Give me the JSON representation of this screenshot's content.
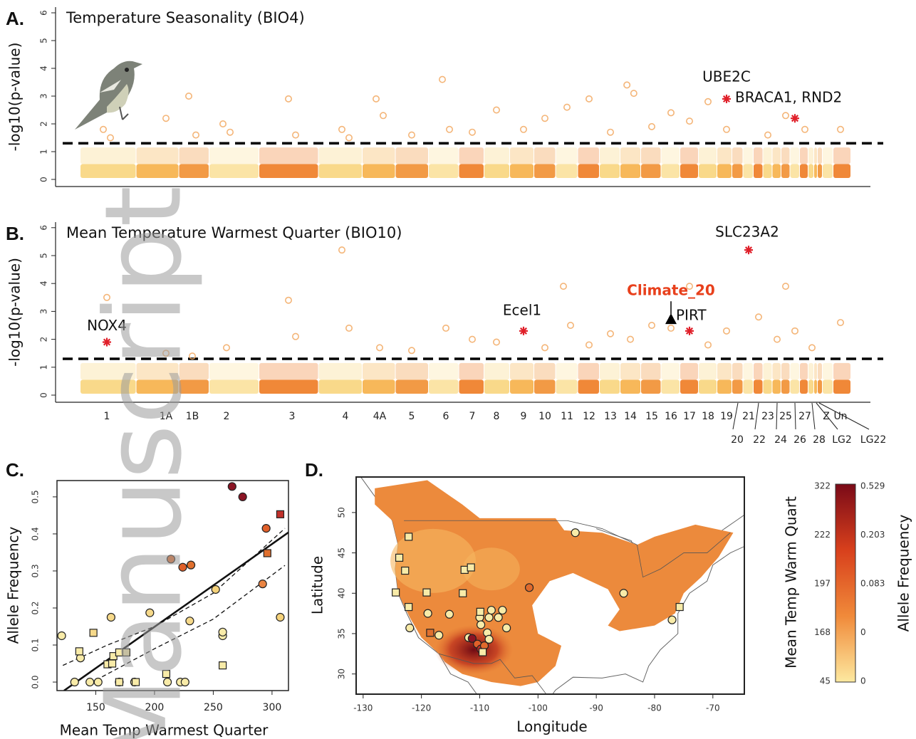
{
  "watermark": "Manuscript",
  "chart_data": [
    {
      "type": "manhattan",
      "panel": "A.",
      "title": "Temperature Seasonality  (BIO4)",
      "y_label": "-log10(p-value)",
      "ylim": [
        0,
        6
      ],
      "yticks": [
        0,
        1,
        2,
        3,
        4,
        5,
        6
      ],
      "threshold": 1.3,
      "palette": [
        "#f9d98a",
        "#f7b85a",
        "#f29a45",
        "#fbe4a6",
        "#f08838"
      ],
      "point_color": "#f2a860",
      "points": {
        "chrom": [
          "1",
          "1",
          "1A",
          "1B",
          "1B",
          "2",
          "2",
          "3",
          "3",
          "4",
          "4",
          "4A",
          "4A",
          "5",
          "6",
          "6",
          "7",
          "8",
          "9",
          "10",
          "11",
          "12",
          "13",
          "14",
          "14",
          "15",
          "16",
          "17",
          "18",
          "19",
          "23",
          "25",
          "27",
          "Un"
        ],
        "values": [
          1.8,
          1.5,
          2.2,
          3.0,
          1.6,
          2.0,
          1.7,
          2.9,
          1.6,
          1.8,
          1.5,
          2.9,
          2.3,
          1.6,
          3.6,
          1.8,
          1.7,
          2.5,
          1.8,
          2.2,
          2.6,
          2.9,
          1.7,
          3.4,
          3.1,
          1.9,
          2.4,
          2.1,
          2.8,
          1.8,
          1.6,
          2.3,
          1.8,
          1.8
        ]
      },
      "hits": [
        {
          "label": "UBE2C",
          "chrom": "19",
          "value": 2.9,
          "marker": "star",
          "color": "#e0202a"
        },
        {
          "label": "BRACA1, RND2",
          "chrom": "26",
          "value": 2.2,
          "marker": "star",
          "color": "#e0202a"
        }
      ]
    },
    {
      "type": "manhattan",
      "panel": "B.",
      "title": "Mean Temperature Warmest Quarter  (BIO10)",
      "y_label": "-log10(p-value)",
      "ylim": [
        0,
        6
      ],
      "yticks": [
        0,
        1,
        2,
        3,
        4,
        5,
        6
      ],
      "threshold": 1.3,
      "palette": [
        "#f9d98a",
        "#f7b85a",
        "#f29a45",
        "#fbe4a6",
        "#f08838"
      ],
      "point_color": "#f2a860",
      "categories": [
        "1",
        "1A",
        "1B",
        "2",
        "3",
        "4",
        "4A",
        "5",
        "6",
        "7",
        "8",
        "9",
        "10",
        "11",
        "12",
        "13",
        "14",
        "15",
        "16",
        "17",
        "18",
        "19",
        "20",
        "21",
        "22",
        "23",
        "24",
        "25",
        "26",
        "27",
        "28",
        "LG2",
        "LG22",
        "Z",
        "Un"
      ],
      "points": {
        "chrom": [
          "1",
          "1A",
          "1B",
          "2",
          "3",
          "3",
          "4",
          "4",
          "4A",
          "5",
          "6",
          "7",
          "8",
          "10",
          "11",
          "11",
          "12",
          "13",
          "14",
          "15",
          "16",
          "17",
          "18",
          "19",
          "22",
          "24",
          "25",
          "26",
          "28",
          "Un"
        ],
        "values": [
          3.5,
          1.5,
          1.4,
          1.7,
          3.4,
          2.1,
          5.2,
          2.4,
          1.7,
          1.6,
          2.4,
          2.0,
          1.9,
          1.7,
          3.9,
          2.5,
          1.8,
          2.2,
          2.0,
          2.5,
          2.4,
          3.9,
          1.8,
          2.3,
          2.8,
          2.0,
          3.9,
          2.3,
          1.7,
          2.6
        ]
      },
      "hits": [
        {
          "label": "NOX4",
          "chrom": "1",
          "value": 1.9,
          "marker": "star",
          "color": "#e0202a"
        },
        {
          "label": "Ecel1",
          "chrom": "9",
          "value": 2.3,
          "marker": "star",
          "color": "#e0202a"
        },
        {
          "label": "SLC23A2",
          "chrom": "21",
          "value": 5.2,
          "marker": "star",
          "color": "#e0202a"
        },
        {
          "label": "PIRT",
          "chrom": "17",
          "value": 2.3,
          "marker": "star",
          "color": "#e0202a"
        },
        {
          "label": "Climate_20",
          "chrom": "16",
          "value": 2.7,
          "marker": "triangle",
          "color": "#000000",
          "label_color": "#e8401c"
        }
      ]
    },
    {
      "type": "scatter",
      "panel": "C.",
      "x_label": "Mean Temp Warmest Quarter",
      "y_label": "Allele Frequency",
      "xlim": [
        117,
        314
      ],
      "ylim": [
        -0.023,
        0.544
      ],
      "xticks": [
        150,
        200,
        250,
        300
      ],
      "yticks": [
        {
          "value": 0,
          "label": "0.0"
        },
        0.1,
        0.2,
        0.3,
        0.4,
        0.5
      ],
      "series": [
        {
          "marker": "circle",
          "x": [
            121,
            132,
            137,
            145,
            152,
            163,
            170,
            183,
            196,
            211,
            222,
            226,
            214,
            224,
            231,
            258,
            230,
            252,
            258,
            266,
            275,
            292,
            295,
            307
          ],
          "values": [
            0.125,
            0,
            0.065,
            0,
            0,
            0.175,
            0,
            0,
            0.187,
            0,
            0,
            0,
            0.332,
            0.31,
            0.316,
            0.125,
            0.165,
            0.25,
            0.135,
            0.528,
            0.5,
            0.265,
            0.415,
            0.175
          ],
          "colors": [
            "#f8eba8",
            "#f8eba8",
            "#f8eba8",
            "#f8eba8",
            "#f8eba8",
            "#f6d98a",
            "#f8eba8",
            "#f8eba8",
            "#f6d98a",
            "#f8eba8",
            "#f8eba8",
            "#f8eba8",
            "#e06a2c",
            "#e0602a",
            "#e0702e",
            "#f8eba8",
            "#f6d98a",
            "#f5d27a",
            "#f8eba8",
            "#8b1424",
            "#8b1424",
            "#ea8442",
            "#e0602a",
            "#f5d27a"
          ]
        },
        {
          "marker": "square",
          "x": [
            136,
            148,
            160,
            165,
            170,
            176,
            184,
            210,
            258,
            296,
            307,
            170,
            164
          ],
          "values": [
            0.083,
            0.133,
            0.048,
            0.07,
            0.08,
            0.08,
            0,
            0.022,
            0.045,
            0.348,
            0.453,
            0,
            0.05
          ],
          "colors": [
            "#f8eba8",
            "#f6d98a",
            "#f8eba8",
            "#f8eba8",
            "#f8eba8",
            "#f8eba8",
            "#f8eba8",
            "#f8eba8",
            "#f8eba8",
            "#e0702e",
            "#c0302a",
            "#f8eba8",
            "#f8eba8"
          ]
        }
      ],
      "fit": {
        "x": [
          123,
          314
        ],
        "values": [
          -0.023,
          0.404
        ]
      },
      "ci_upper": {
        "x": [
          122,
          160,
          200,
          250,
          311
        ],
        "values": [
          0.045,
          0.1,
          0.15,
          0.24,
          0.415
        ]
      },
      "ci_lower": {
        "x": [
          150,
          200,
          250,
          311
        ],
        "values": [
          0.005,
          0.09,
          0.17,
          0.315
        ]
      }
    },
    {
      "type": "map",
      "panel": "D.",
      "x_label": "Longitude",
      "y_label": "Latitude",
      "xlim": [
        -131.2,
        -64.6
      ],
      "ylim": [
        27.5,
        54.4
      ],
      "xticks": [
        -130,
        -120,
        -110,
        -100,
        -90,
        -80,
        -70
      ],
      "yticks": [
        30,
        35,
        40,
        45,
        50
      ],
      "series": [
        {
          "marker": "circle",
          "x": [
            -93.6,
            -101.5,
            -85.3,
            -77,
            -122,
            -118.9,
            -115.2,
            -117,
            -110,
            -109.8,
            -108.4,
            -108,
            -106.8,
            -106.1,
            -105.4,
            -108.7,
            -111.9,
            -111.3,
            -110.4,
            -109.8,
            -109.2,
            -108.4
          ],
          "values": [
            47.5,
            40.7,
            40,
            36.7,
            35.7,
            37.5,
            37.4,
            34.8,
            37,
            36.1,
            37,
            37.9,
            37,
            37.9,
            35.7,
            35.1,
            34.5,
            34.4,
            33.7,
            33.1,
            33.5,
            34.3
          ],
          "colors": [
            "#f8eba8",
            "#e06a2c",
            "#f8eba8",
            "#f8eba8",
            "#f8eba8",
            "#f8eba8",
            "#f8eba8",
            "#f8eba8",
            "#f8eba8",
            "#f8eba8",
            "#f8eba8",
            "#f8eba8",
            "#f8eba8",
            "#f8eba8",
            "#f8eba8",
            "#f8eba8",
            "#f8eba8",
            "#8b1424",
            "#e0602a",
            "#c0302a",
            "#e06a2c",
            "#f8eba8"
          ]
        },
        {
          "marker": "square",
          "x": [
            -122.2,
            -123.8,
            -122.8,
            -124.4,
            -122.2,
            -118.5,
            -119.1,
            -112.6,
            -111.5,
            -109.9,
            -109.5,
            -75.7,
            -112.9
          ],
          "values": [
            47,
            44.4,
            42.8,
            40.1,
            38.3,
            35.1,
            40.1,
            42.9,
            43.2,
            37.7,
            32.7,
            38.3,
            40
          ],
          "colors": [
            "#f8eba8",
            "#f8eba8",
            "#f8eba8",
            "#f8eba8",
            "#f8eba8",
            "#e0702e",
            "#f8eba8",
            "#f8eba8",
            "#f8eba8",
            "#f8eba8",
            "#f8eba8",
            "#f8eba8",
            "#f8eba8"
          ]
        }
      ],
      "colorbar": {
        "title_left": "Mean Temp Warm Quart",
        "title_right": "Allele Frequency",
        "left_labels": [
          322,
          222,
          197,
          168,
          45
        ],
        "right_labels": [
          0.529,
          0.203,
          0.083,
          0,
          0
        ],
        "colors": [
          "#7a0a18",
          "#d8401c",
          "#f08a3a",
          "#fde9a0"
        ]
      }
    }
  ]
}
